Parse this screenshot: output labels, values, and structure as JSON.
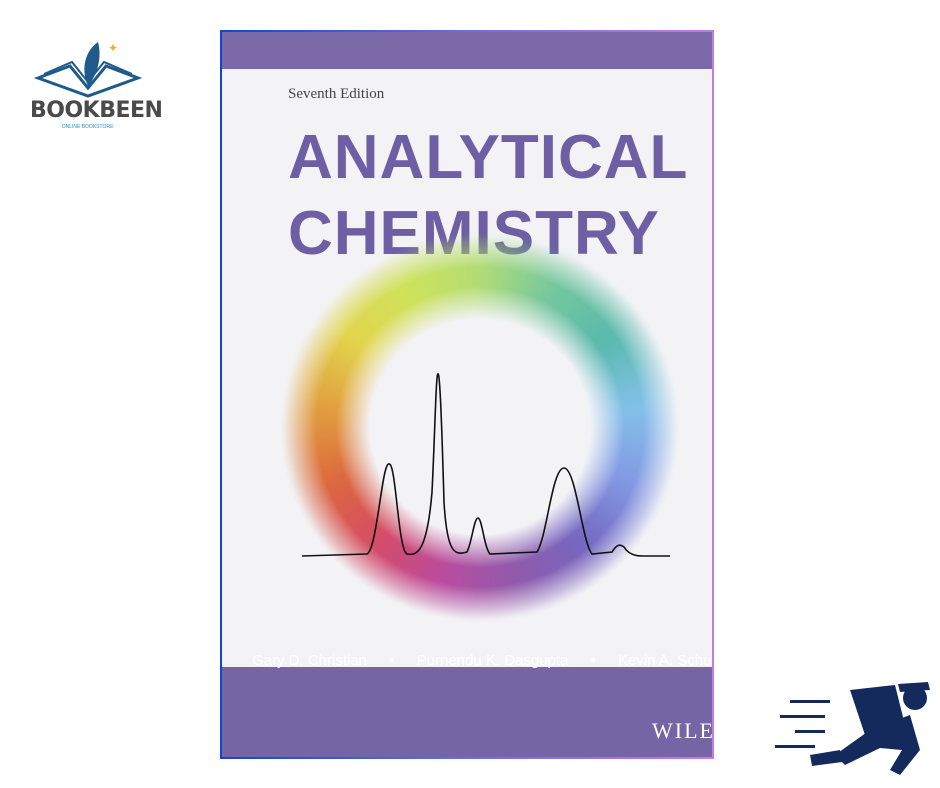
{
  "logo": {
    "name": "BOOKBEEN",
    "tagline": "ONLINE BOOKSTORE"
  },
  "book": {
    "edition": "Seventh Edition",
    "title_line1": "ANALYTICAL",
    "title_line2": "CHEMISTRY",
    "authors": [
      "Gary D. Christian",
      "Purnendu K. Dasgupta",
      "Kevin A. Schug"
    ],
    "separator": "•",
    "publisher": "WILEY"
  },
  "colors": {
    "cover_purple": "#7665a4",
    "title_purple": "#6d5fa3",
    "frame_left": "#1246d0",
    "frame_right": "#c878e8",
    "runner": "#152a5c"
  },
  "icons": [
    "feather-book-logo",
    "running-delivery-man-icon"
  ]
}
